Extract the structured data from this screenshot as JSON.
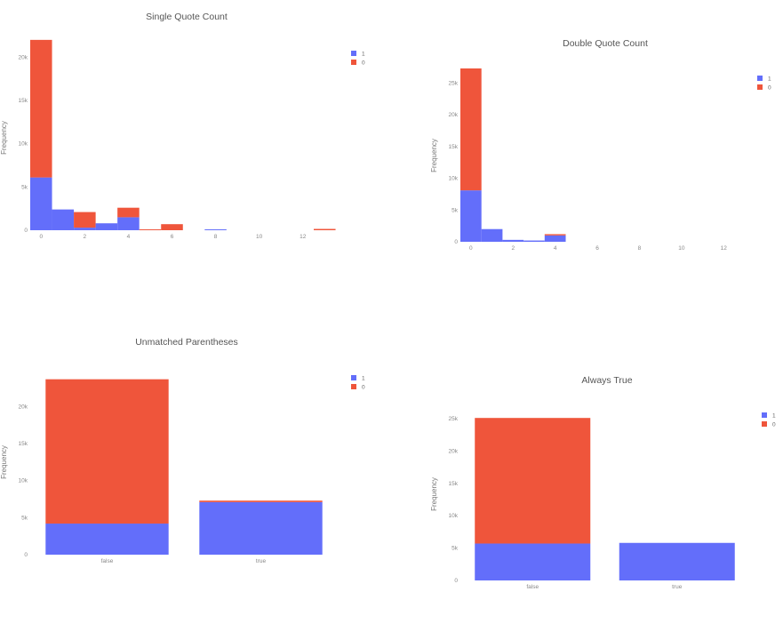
{
  "colors": {
    "series_1": "#636efa",
    "series_0": "#ef553b"
  },
  "chart_data": [
    {
      "id": "single-quote",
      "type": "bar",
      "stacked": true,
      "title": "Single Quote Count",
      "ylabel": "Frequency",
      "ylim": [
        0,
        22500
      ],
      "yticks": [
        {
          "v": 0,
          "t": "0"
        },
        {
          "v": 5000,
          "t": "5k"
        },
        {
          "v": 10000,
          "t": "10k"
        },
        {
          "v": 15000,
          "t": "15k"
        },
        {
          "v": 20000,
          "t": "20k"
        }
      ],
      "xlim": [
        -0.5,
        13.6
      ],
      "xticks": [
        {
          "v": 0,
          "t": "0"
        },
        {
          "v": 2,
          "t": "2"
        },
        {
          "v": 4,
          "t": "4"
        },
        {
          "v": 6,
          "t": "6"
        },
        {
          "v": 8,
          "t": "8"
        },
        {
          "v": 10,
          "t": "10"
        },
        {
          "v": 12,
          "t": "12"
        }
      ],
      "bins": [
        [
          -0.5,
          0.5
        ],
        [
          0.5,
          1.5
        ],
        [
          1.5,
          2.5
        ],
        [
          2.5,
          3.5
        ],
        [
          3.5,
          4.5
        ],
        [
          4.5,
          5.5
        ],
        [
          5.5,
          6.5
        ],
        [
          6.5,
          7.5
        ],
        [
          7.5,
          8.5
        ],
        [
          8.5,
          9.5
        ],
        [
          9.5,
          10.5
        ],
        [
          10.5,
          11.5
        ],
        [
          11.5,
          12.5
        ],
        [
          12.5,
          13.5
        ]
      ],
      "legend": [
        "1",
        "0"
      ],
      "series": [
        {
          "name": "1",
          "values": [
            6100,
            2400,
            300,
            800,
            1500,
            0,
            0,
            0,
            100,
            0,
            0,
            0,
            0,
            0
          ]
        },
        {
          "name": "0",
          "values": [
            15900,
            0,
            1800,
            0,
            1100,
            100,
            700,
            0,
            0,
            0,
            0,
            0,
            0,
            150
          ]
        }
      ]
    },
    {
      "id": "double-quote",
      "type": "bar",
      "stacked": true,
      "title": "Double Quote Count",
      "ylabel": "Frequency",
      "ylim": [
        0,
        28000
      ],
      "yticks": [
        {
          "v": 0,
          "t": "0"
        },
        {
          "v": 5000,
          "t": "5k"
        },
        {
          "v": 10000,
          "t": "10k"
        },
        {
          "v": 15000,
          "t": "15k"
        },
        {
          "v": 20000,
          "t": "20k"
        },
        {
          "v": 25000,
          "t": "25k"
        }
      ],
      "xlim": [
        -0.5,
        13.0
      ],
      "xticks": [
        {
          "v": 0,
          "t": "0"
        },
        {
          "v": 2,
          "t": "2"
        },
        {
          "v": 4,
          "t": "4"
        },
        {
          "v": 6,
          "t": "6"
        },
        {
          "v": 8,
          "t": "8"
        },
        {
          "v": 10,
          "t": "10"
        },
        {
          "v": 12,
          "t": "12"
        }
      ],
      "bins": [
        [
          -0.5,
          0.5
        ],
        [
          0.5,
          1.5
        ],
        [
          1.5,
          2.5
        ],
        [
          2.5,
          3.5
        ],
        [
          3.5,
          4.5
        ]
      ],
      "legend": [
        "1",
        "0"
      ],
      "series": [
        {
          "name": "1",
          "values": [
            8100,
            2000,
            300,
            200,
            1000
          ]
        },
        {
          "name": "0",
          "values": [
            19200,
            0,
            0,
            0,
            200
          ]
        }
      ]
    },
    {
      "id": "unmatched-parentheses",
      "type": "bar",
      "stacked": true,
      "title": "Unmatched Parentheses",
      "ylabel": "Frequency",
      "ylim": [
        0,
        24500
      ],
      "yticks": [
        {
          "v": 0,
          "t": "0"
        },
        {
          "v": 5000,
          "t": "5k"
        },
        {
          "v": 10000,
          "t": "10k"
        },
        {
          "v": 15000,
          "t": "15k"
        },
        {
          "v": 20000,
          "t": "20k"
        }
      ],
      "categories": [
        "false",
        "true"
      ],
      "legend": [
        "1",
        "0"
      ],
      "series": [
        {
          "name": "1",
          "values": [
            4200,
            7100
          ]
        },
        {
          "name": "0",
          "values": [
            19500,
            200
          ]
        }
      ]
    },
    {
      "id": "always-true",
      "type": "bar",
      "stacked": true,
      "title": "Always True",
      "ylabel": "Frequency",
      "ylim": [
        0,
        26500
      ],
      "yticks": [
        {
          "v": 0,
          "t": "0"
        },
        {
          "v": 5000,
          "t": "5k"
        },
        {
          "v": 10000,
          "t": "10k"
        },
        {
          "v": 15000,
          "t": "15k"
        },
        {
          "v": 20000,
          "t": "20k"
        },
        {
          "v": 25000,
          "t": "25k"
        }
      ],
      "categories": [
        "false",
        "true"
      ],
      "legend": [
        "1",
        "0"
      ],
      "series": [
        {
          "name": "1",
          "values": [
            5700,
            5800
          ]
        },
        {
          "name": "0",
          "values": [
            19400,
            0
          ]
        }
      ]
    }
  ]
}
